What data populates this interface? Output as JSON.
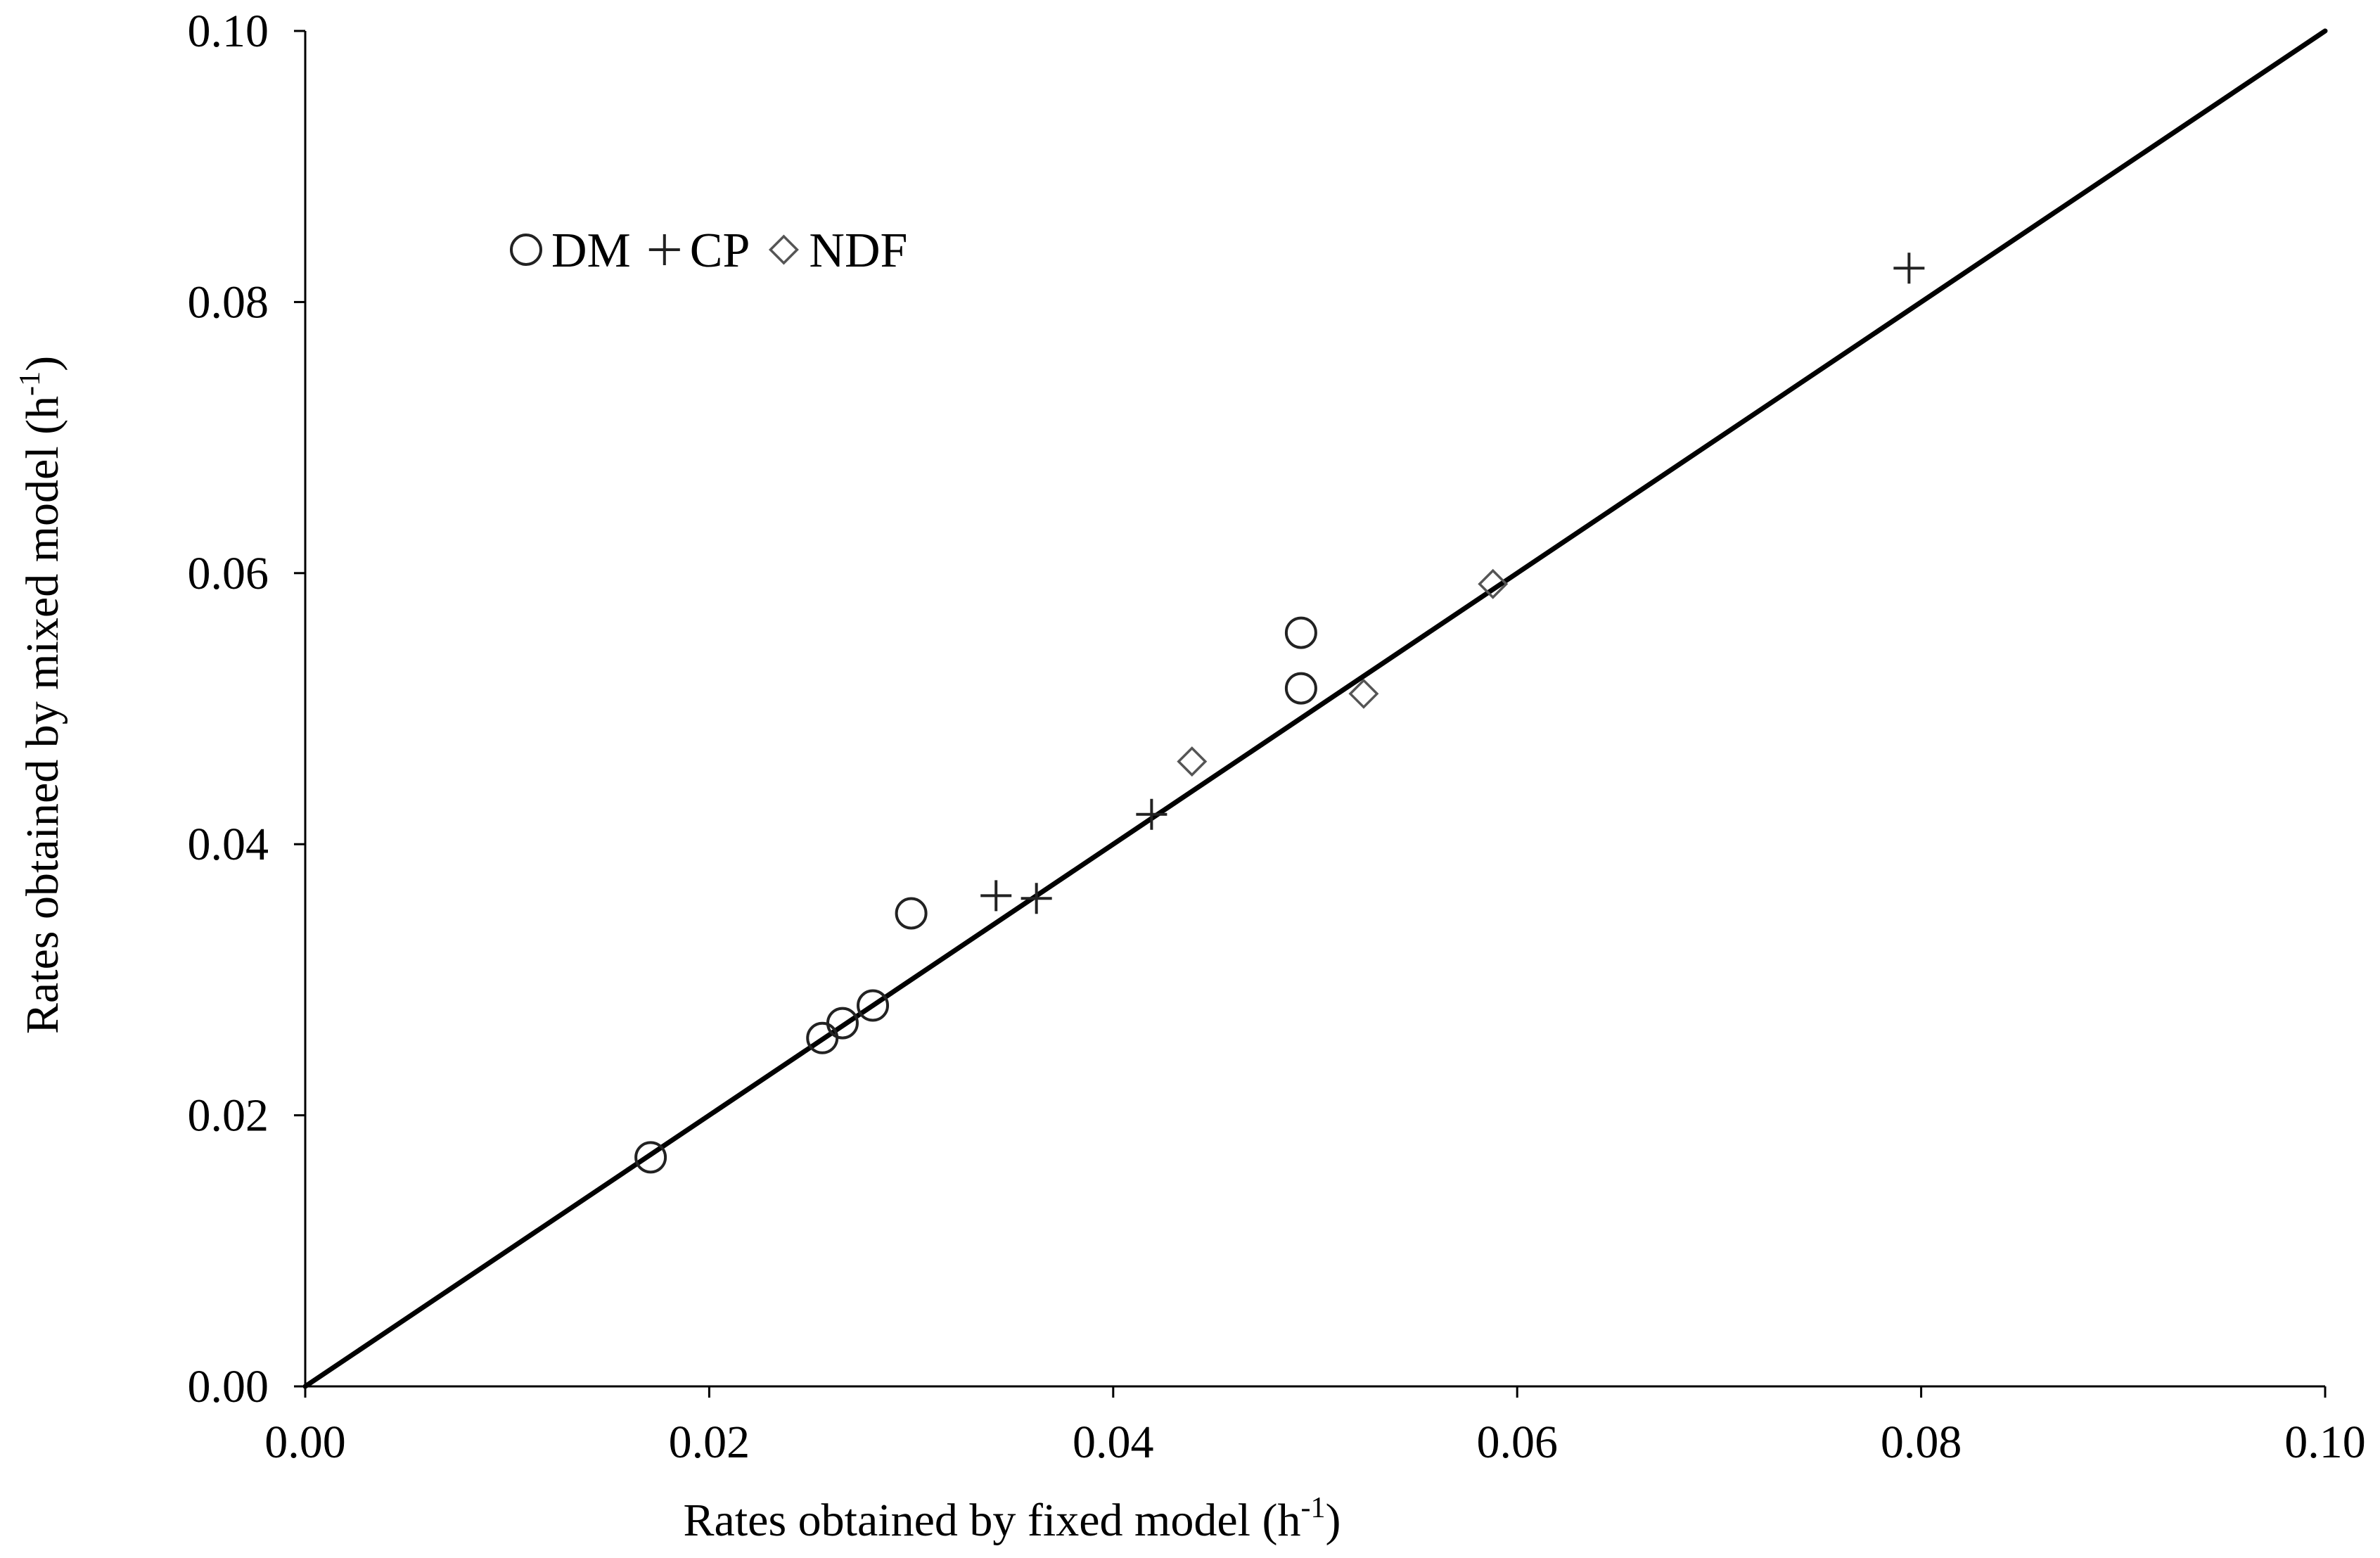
{
  "chart_data": {
    "type": "scatter",
    "title": "",
    "xlabel": "Rates obtained by fixed model (h-1)",
    "ylabel": "Rates obtained by mixed model (h-1)",
    "xlabel_parts": {
      "main": "Rates obtained by fixed model (h",
      "sup": "-1",
      "end": ")"
    },
    "ylabel_parts": {
      "main": "Rates obtained by mixed model (h",
      "sup": "-1",
      "end": ")"
    },
    "xlim": [
      0,
      0.1
    ],
    "ylim": [
      0,
      0.1
    ],
    "xticks": [
      "0.00",
      "0.02",
      "0.04",
      "0.06",
      "0.08",
      "0.10"
    ],
    "yticks": [
      "0.00",
      "0.02",
      "0.04",
      "0.06",
      "0.08",
      "0.10"
    ],
    "grid": false,
    "legend_position": "top-left",
    "reference_line": {
      "name": "1:1 line",
      "x": [
        0,
        0.1
      ],
      "y": [
        0,
        0.1
      ]
    },
    "series": [
      {
        "name": "DM",
        "marker": "circle",
        "points": [
          {
            "x": 0.0171,
            "y": 0.0169
          },
          {
            "x": 0.0256,
            "y": 0.0257
          },
          {
            "x": 0.0266,
            "y": 0.0268
          },
          {
            "x": 0.0281,
            "y": 0.0281
          },
          {
            "x": 0.03,
            "y": 0.0349
          },
          {
            "x": 0.0493,
            "y": 0.0515
          },
          {
            "x": 0.0493,
            "y": 0.0556
          }
        ]
      },
      {
        "name": "CP",
        "marker": "plus",
        "points": [
          {
            "x": 0.0342,
            "y": 0.0362
          },
          {
            "x": 0.0362,
            "y": 0.036
          },
          {
            "x": 0.0419,
            "y": 0.0422
          },
          {
            "x": 0.0794,
            "y": 0.0825
          }
        ]
      },
      {
        "name": "NDF",
        "marker": "diamond",
        "points": [
          {
            "x": 0.0439,
            "y": 0.0461
          },
          {
            "x": 0.0524,
            "y": 0.0511
          },
          {
            "x": 0.0588,
            "y": 0.0592
          }
        ]
      }
    ]
  }
}
